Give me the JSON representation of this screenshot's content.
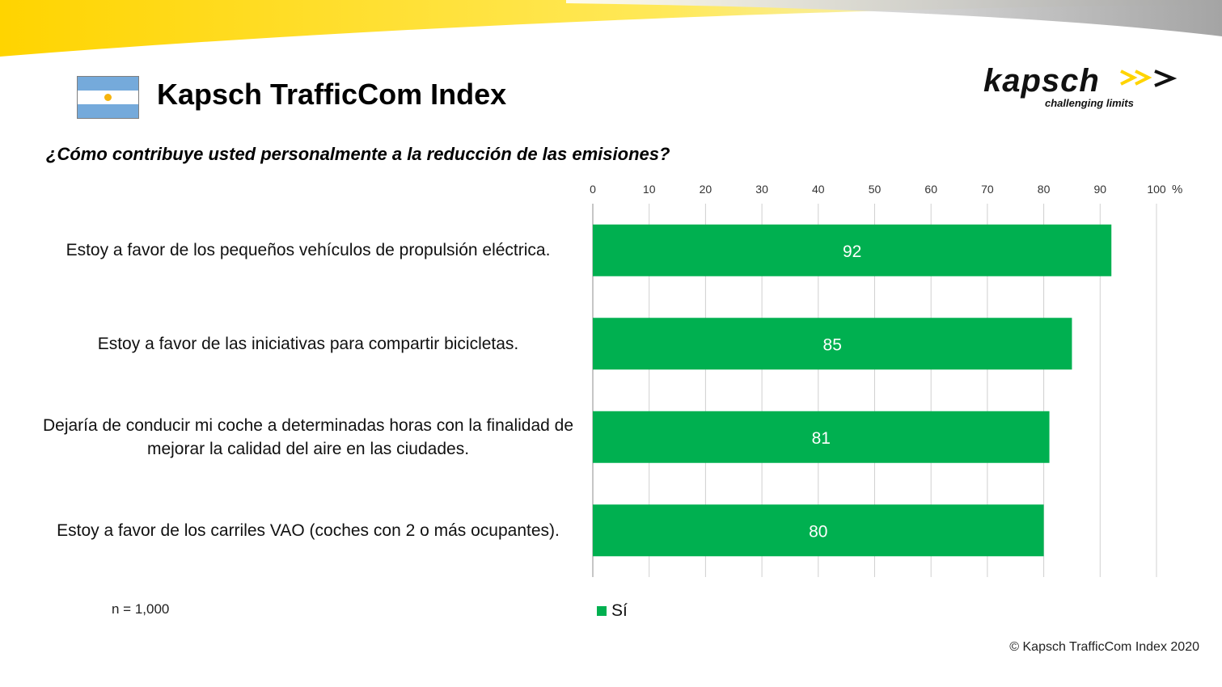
{
  "slide_title": "Kapsch TrafficCom Index",
  "logo": {
    "wordmark": "kapsch",
    "tagline": "challenging limits"
  },
  "flag_icon": "argentina-flag-icon",
  "colors": {
    "bar": "#00b050",
    "grid": "#d0d0d0",
    "yellow": "#ffe300"
  },
  "chart_data": {
    "type": "bar",
    "orientation": "horizontal",
    "title": "¿Cómo contribuye usted personalmente a la reducción de las emisiones?",
    "categories": [
      "Estoy a favor de los pequeños vehículos de propulsión eléctrica.",
      "Estoy a favor de las iniciativas para compartir bicicletas.",
      "Dejaría de conducir mi coche a determinadas horas con la finalidad de mejorar la calidad del aire en las ciudades.",
      "Estoy a favor de los carriles VAO (coches con 2 o más ocupantes)."
    ],
    "series": [
      {
        "name": "Sí",
        "values": [
          92,
          85,
          81,
          80
        ]
      }
    ],
    "xlim": [
      0,
      100
    ],
    "xticks": [
      "0",
      "10",
      "20",
      "30",
      "40",
      "50",
      "60",
      "70",
      "80",
      "90",
      "100"
    ],
    "x_unit": "%",
    "axis_position": "top",
    "grid": true,
    "legend_position": "bottom"
  },
  "sample_note": "n = 1,000",
  "copyright": "© Kapsch TrafficCom Index 2020"
}
